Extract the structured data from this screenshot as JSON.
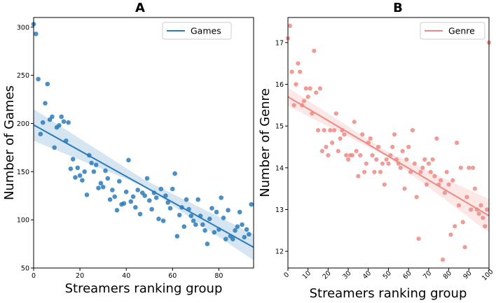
{
  "chart_data": [
    {
      "id": "A",
      "type": "scatter",
      "title": "A",
      "xlabel": "Streamers ranking group",
      "ylabel": "Number of Games",
      "xlim": [
        0,
        95
      ],
      "ylim": [
        50,
        310
      ],
      "xticks": [
        0,
        20,
        40,
        60,
        80
      ],
      "yticks": [
        50,
        100,
        150,
        200,
        250,
        300
      ],
      "tick_rotation": 0,
      "color": "#2b7bba",
      "legend": {
        "label": "Games",
        "position": "top-right"
      },
      "regression": {
        "x0": 0,
        "y0": 198.5,
        "x1": 95,
        "y1": 71.5
      },
      "ci": {
        "lower": [
          182,
          135,
          58
        ],
        "upper": [
          215,
          142,
          85
        ]
      },
      "points": [
        [
          0,
          303
        ],
        [
          1,
          293
        ],
        [
          2,
          246
        ],
        [
          3,
          189
        ],
        [
          4,
          201
        ],
        [
          5,
          221
        ],
        [
          6,
          241
        ],
        [
          7,
          204
        ],
        [
          8,
          207
        ],
        [
          9,
          175
        ],
        [
          10,
          196
        ],
        [
          11,
          198
        ],
        [
          12,
          207
        ],
        [
          13,
          202
        ],
        [
          14,
          182
        ],
        [
          15,
          201
        ],
        [
          16,
          153
        ],
        [
          17,
          163
        ],
        [
          18,
          144
        ],
        [
          19,
          154
        ],
        [
          20,
          146
        ],
        [
          21,
          141
        ],
        [
          22,
          150
        ],
        [
          23,
          126
        ],
        [
          24,
          167
        ],
        [
          25,
          159
        ],
        [
          26,
          150
        ],
        [
          27,
          157
        ],
        [
          28,
          133
        ],
        [
          29,
          138
        ],
        [
          30,
          134
        ],
        [
          31,
          151
        ],
        [
          32,
          143
        ],
        [
          33,
          121
        ],
        [
          34,
          131
        ],
        [
          35,
          124
        ],
        [
          36,
          110
        ],
        [
          37,
          140
        ],
        [
          38,
          116
        ],
        [
          39,
          117
        ],
        [
          40,
          129
        ],
        [
          41,
          162
        ],
        [
          42,
          119
        ],
        [
          43,
          124
        ],
        [
          44,
          113
        ],
        [
          45,
          131
        ],
        [
          46,
          106
        ],
        [
          47,
          128
        ],
        [
          48,
          125
        ],
        [
          49,
          143
        ],
        [
          50,
          120
        ],
        [
          51,
          111
        ],
        [
          52,
          128
        ],
        [
          53,
          123
        ],
        [
          54,
          101
        ],
        [
          55,
          132
        ],
        [
          56,
          99
        ],
        [
          57,
          125
        ],
        [
          58,
          118
        ],
        [
          59,
          112
        ],
        [
          60,
          132
        ],
        [
          61,
          148
        ],
        [
          62,
          83
        ],
        [
          63,
          105
        ],
        [
          64,
          113
        ],
        [
          65,
          93
        ],
        [
          66,
          121
        ],
        [
          67,
          111
        ],
        [
          68,
          104
        ],
        [
          69,
          99
        ],
        [
          70,
          95
        ],
        [
          71,
          121
        ],
        [
          72,
          104
        ],
        [
          73,
          95
        ],
        [
          74,
          89
        ],
        [
          75,
          75
        ],
        [
          76,
          101
        ],
        [
          77,
          112
        ],
        [
          78,
          87
        ],
        [
          79,
          108
        ],
        [
          80,
          90
        ],
        [
          81,
          123
        ],
        [
          82,
          102
        ],
        [
          83,
          80
        ],
        [
          84,
          110
        ],
        [
          85,
          83
        ],
        [
          86,
          80
        ],
        [
          87,
          89
        ],
        [
          88,
          93
        ],
        [
          89,
          108
        ],
        [
          90,
          95
        ],
        [
          91,
          82
        ],
        [
          92,
          90
        ],
        [
          93,
          85
        ],
        [
          94,
          116
        ]
      ]
    },
    {
      "id": "B",
      "type": "scatter",
      "title": "B",
      "xlabel": "Streamers ranking group",
      "ylabel": "Number of Genre",
      "xlim": [
        0,
        100
      ],
      "ylim": [
        11.6,
        17.6
      ],
      "xticks": [
        0,
        10,
        20,
        30,
        40,
        50,
        60,
        70,
        80,
        90,
        100
      ],
      "yticks": [
        12,
        13,
        14,
        15,
        16,
        17
      ],
      "tick_rotation": -45,
      "color": "#ee8a85",
      "legend": {
        "label": "Genre",
        "position": "top-right"
      },
      "regression": {
        "x0": 0,
        "y0": 15.7,
        "x1": 100,
        "y1": 12.85
      },
      "ci": {
        "lower": [
          15.48,
          14.25,
          12.45
        ],
        "upper": [
          15.92,
          14.37,
          13.25
        ]
      },
      "points": [
        [
          0,
          17.1
        ],
        [
          1,
          17.4
        ],
        [
          2,
          16.3
        ],
        [
          3,
          15.5
        ],
        [
          4,
          16.0
        ],
        [
          5,
          16.5
        ],
        [
          6,
          16.3
        ],
        [
          7,
          15.5
        ],
        [
          8,
          15.6
        ],
        [
          9,
          15.9
        ],
        [
          10,
          15.7
        ],
        [
          11,
          15.9
        ],
        [
          12,
          15.3
        ],
        [
          13,
          16.8
        ],
        [
          14,
          15.8
        ],
        [
          15,
          14.9
        ],
        [
          16,
          15.9
        ],
        [
          17,
          14.4
        ],
        [
          18,
          14.9
        ],
        [
          19,
          14.5
        ],
        [
          20,
          14.3
        ],
        [
          21,
          14.9
        ],
        [
          22,
          14.6
        ],
        [
          23,
          14.9
        ],
        [
          24,
          15.3
        ],
        [
          25,
          14.4
        ],
        [
          26,
          14.7
        ],
        [
          27,
          14.9
        ],
        [
          28,
          14.8
        ],
        [
          29,
          14.3
        ],
        [
          30,
          14.2
        ],
        [
          31,
          14.3
        ],
        [
          32,
          14.3
        ],
        [
          33,
          15.1
        ],
        [
          34,
          14.4
        ],
        [
          35,
          13.8
        ],
        [
          36,
          14.3
        ],
        [
          37,
          14.8
        ],
        [
          38,
          13.9
        ],
        [
          39,
          14.1
        ],
        [
          40,
          14.6
        ],
        [
          41,
          14.7
        ],
        [
          42,
          14.3
        ],
        [
          43,
          13.9
        ],
        [
          44,
          14.2
        ],
        [
          45,
          14.5
        ],
        [
          46,
          13.9
        ],
        [
          47,
          14.1
        ],
        [
          48,
          13.6
        ],
        [
          49,
          14.2
        ],
        [
          50,
          14.1
        ],
        [
          51,
          14.3
        ],
        [
          52,
          14.5
        ],
        [
          53,
          14.8
        ],
        [
          54,
          14.2
        ],
        [
          55,
          14.1
        ],
        [
          56,
          14.0
        ],
        [
          57,
          14.4
        ],
        [
          58,
          13.5
        ],
        [
          59,
          14.2
        ],
        [
          60,
          14.5
        ],
        [
          61,
          13.9
        ],
        [
          62,
          14.9
        ],
        [
          63,
          14.1
        ],
        [
          64,
          13.3
        ],
        [
          65,
          12.3
        ],
        [
          66,
          13.9
        ],
        [
          67,
          14.0
        ],
        [
          68,
          14.2
        ],
        [
          69,
          13.6
        ],
        [
          70,
          14.1
        ],
        [
          71,
          13.9
        ],
        [
          72,
          14.2
        ],
        [
          73,
          13.8
        ],
        [
          74,
          14.7
        ],
        [
          75,
          13.6
        ],
        [
          76,
          13.7
        ],
        [
          77,
          11.8
        ],
        [
          78,
          13.4
        ],
        [
          79,
          13.9
        ],
        [
          80,
          13.6
        ],
        [
          81,
          12.4
        ],
        [
          82,
          13.7
        ],
        [
          83,
          12.6
        ],
        [
          84,
          14.6
        ],
        [
          85,
          13.1
        ],
        [
          86,
          14.0
        ],
        [
          87,
          12.7
        ],
        [
          88,
          12.1
        ],
        [
          89,
          13.3
        ],
        [
          90,
          14.0
        ],
        [
          91,
          13.0
        ],
        [
          92,
          14.0
        ],
        [
          93,
          13.5
        ],
        [
          94,
          13.0
        ],
        [
          95,
          12.9
        ],
        [
          96,
          13.1
        ],
        [
          97,
          12.8
        ],
        [
          98,
          12.6
        ],
        [
          99,
          13.0
        ],
        [
          100,
          17.0
        ]
      ]
    }
  ]
}
